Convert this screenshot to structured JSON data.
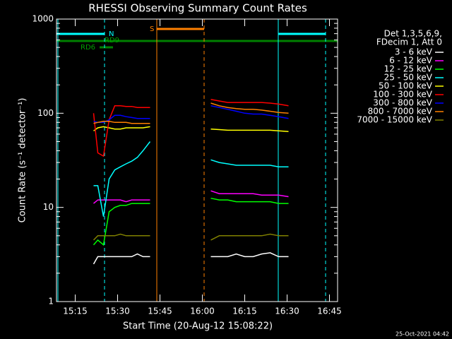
{
  "chart_data": {
    "type": "line",
    "title": "RHESSI Observing Summary Count Rates",
    "x_label": "Start Time (20-Aug-12 15:08:22)",
    "y_label": "Count Rate (s⁻¹ detector⁻¹)",
    "legend_header": [
      "Det 1,3,5,6,9,",
      "FDecim 1, Att 0"
    ],
    "footer": "25-Oct-2021 04:42",
    "annotations": [
      "S",
      "N",
      "RD9",
      "RD6"
    ],
    "log_y": true,
    "xlim": [
      8.37,
      107.87
    ],
    "xticks": [
      {
        "value": 15,
        "label": "15:15"
      },
      {
        "value": 30,
        "label": "15:30"
      },
      {
        "value": 45,
        "label": "15:45"
      },
      {
        "value": 60,
        "label": "16:00"
      },
      {
        "value": 75,
        "label": "16:15"
      },
      {
        "value": 90,
        "label": "16:30"
      },
      {
        "value": 105,
        "label": "16:45"
      }
    ],
    "ylim": [
      1,
      1000
    ],
    "yticks": [
      1,
      10,
      100,
      1000
    ],
    "x": [
      21.5,
      23,
      25,
      27,
      29,
      31,
      33,
      35,
      37,
      39,
      41.5,
      52,
      63,
      66,
      69,
      72,
      75,
      78,
      81,
      84,
      87,
      90.5
    ],
    "series": [
      {
        "name": "3 - 6 keV",
        "color": "#ffffff",
        "values": [
          2.5,
          3,
          3,
          3,
          3,
          3,
          3,
          3,
          3.2,
          3,
          3,
          null,
          3,
          3,
          3,
          3.2,
          3,
          3,
          3.2,
          3.3,
          3,
          3
        ]
      },
      {
        "name": "6 - 12 keV",
        "color": "#ff00ff",
        "values": [
          11,
          12,
          12,
          12,
          12,
          12,
          11.5,
          12,
          12,
          12,
          12,
          null,
          15,
          14,
          14,
          14,
          14,
          14,
          13.5,
          13.5,
          13.5,
          13
        ]
      },
      {
        "name": "12 - 25 keV",
        "color": "#00ff00",
        "values": [
          4,
          4.5,
          4,
          9,
          10,
          10.5,
          10.5,
          11,
          11,
          11,
          11,
          null,
          12.5,
          12,
          12,
          11.5,
          11.5,
          11.5,
          11.5,
          11.5,
          11,
          11
        ]
      },
      {
        "name": "25 - 50 keV",
        "color": "#00ffff",
        "values": [
          17,
          17,
          8,
          20,
          25,
          27,
          29,
          31,
          34,
          40,
          50,
          null,
          32,
          30,
          29,
          28,
          28,
          28,
          28,
          28,
          27,
          27
        ]
      },
      {
        "name": "50 - 100 keV",
        "color": "#ffff00",
        "values": [
          65,
          70,
          72,
          70,
          68,
          68,
          70,
          70,
          70,
          70,
          72,
          null,
          68,
          67,
          66,
          66,
          66,
          66,
          66,
          66,
          65,
          64
        ]
      },
      {
        "name": "100 - 300 keV",
        "color": "#ff0000",
        "values": [
          100,
          38,
          35,
          85,
          120,
          120,
          118,
          118,
          115,
          115,
          115,
          null,
          140,
          135,
          130,
          130,
          130,
          130,
          130,
          128,
          125,
          120
        ]
      },
      {
        "name": "300 - 800 keV",
        "color": "#0000ff",
        "values": [
          82,
          80,
          80,
          85,
          95,
          95,
          92,
          90,
          88,
          88,
          88,
          null,
          120,
          115,
          110,
          105,
          100,
          98,
          98,
          95,
          92,
          88
        ]
      },
      {
        "name": "800 - 7000 keV",
        "color": "#ff8000",
        "values": [
          78,
          80,
          82,
          82,
          80,
          80,
          80,
          78,
          78,
          78,
          78,
          null,
          128,
          120,
          115,
          112,
          110,
          110,
          108,
          105,
          102,
          100
        ]
      },
      {
        "name": "7000 - 15000 keV",
        "color": "#808000",
        "values": [
          4.5,
          5,
          5,
          5,
          5,
          5.2,
          5,
          5,
          5,
          5,
          5,
          null,
          4.5,
          5,
          5,
          5,
          5,
          5,
          5,
          5.2,
          5,
          5
        ]
      }
    ]
  }
}
